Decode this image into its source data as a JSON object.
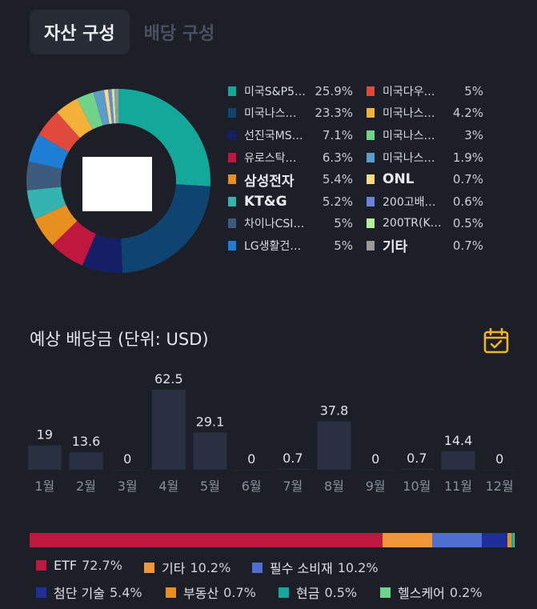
{
  "tabs": [
    {
      "label": "자산 구성",
      "active": true
    },
    {
      "label": "배당 구성",
      "active": false
    }
  ],
  "asset_composition": {
    "items": [
      {
        "name": "미국S&P5…",
        "value": 25.9,
        "label": "25.9%",
        "color": "#14a89a",
        "big": false
      },
      {
        "name": "미국나스…",
        "value": 23.3,
        "label": "23.3%",
        "color": "#0f4470",
        "big": false
      },
      {
        "name": "선진국MS…",
        "value": 7.1,
        "label": "7.1%",
        "color": "#151f66",
        "big": false
      },
      {
        "name": "유로스탁…",
        "value": 6.3,
        "label": "6.3%",
        "color": "#c0173f",
        "big": false
      },
      {
        "name": "삼성전자",
        "value": 5.4,
        "label": "5.4%",
        "color": "#e8901f",
        "big": true
      },
      {
        "name": "KT&G",
        "value": 5.2,
        "label": "5.2%",
        "color": "#34b3b0",
        "big": true
      },
      {
        "name": "차이나CSI…",
        "value": 5.0,
        "label": "5%",
        "color": "#3d5b7d",
        "big": false
      },
      {
        "name": "LG생활건…",
        "value": 5.0,
        "label": "5%",
        "color": "#1f7fd6",
        "big": false
      },
      {
        "name": "미국다우…",
        "value": 5.0,
        "label": "5%",
        "color": "#e04a3c",
        "big": false
      },
      {
        "name": "미국나스…",
        "value": 4.2,
        "label": "4.2%",
        "color": "#f3b13a",
        "big": false
      },
      {
        "name": "미국나스…",
        "value": 3.0,
        "label": "3%",
        "color": "#6fd38a",
        "big": false
      },
      {
        "name": "미국나스…",
        "value": 1.9,
        "label": "1.9%",
        "color": "#5d9cc8",
        "big": false
      },
      {
        "name": "ONL",
        "value": 0.7,
        "label": "0.7%",
        "color": "#f7d98a",
        "big": true
      },
      {
        "name": "200고배…",
        "value": 0.6,
        "label": "0.6%",
        "color": "#6f83d6",
        "big": false
      },
      {
        "name": "200TR(K…",
        "value": 0.5,
        "label": "0.5%",
        "color": "#b8ef9a",
        "big": false
      },
      {
        "name": "기타",
        "value": 0.7,
        "label": "0.7%",
        "color": "#9a9a9a",
        "big": true
      }
    ]
  },
  "dividend": {
    "title": "예상 배당금 (단위: USD)",
    "calendar_icon": "calendar-check-icon",
    "accent": "#f0b429"
  },
  "chart_data": {
    "type": "bar",
    "categories": [
      "1월",
      "2월",
      "3월",
      "4월",
      "5월",
      "6월",
      "7월",
      "8월",
      "9월",
      "10월",
      "11월",
      "12월"
    ],
    "values": [
      19,
      13.6,
      0,
      62.5,
      29.1,
      0,
      0.7,
      37.8,
      0,
      0.7,
      14.4,
      0
    ],
    "value_labels": [
      "19",
      "13.6",
      "0",
      "62.5",
      "29.1",
      "0",
      "0.7",
      "37.8",
      "0",
      "0.7",
      "14.4",
      "0"
    ]
  },
  "category_breakdown": [
    {
      "name": "ETF",
      "value": 72.7,
      "label": "72.7%",
      "color": "#c0173f"
    },
    {
      "name": "기타",
      "value": 10.2,
      "label": "10.2%",
      "color": "#f0963a"
    },
    {
      "name": "필수 소비재",
      "value": 10.2,
      "label": "10.2%",
      "color": "#4f6fd0"
    },
    {
      "name": "첨단 기술",
      "value": 5.4,
      "label": "5.4%",
      "color": "#1f2f9a"
    },
    {
      "name": "부동산",
      "value": 0.7,
      "label": "0.7%",
      "color": "#e8901f"
    },
    {
      "name": "현금",
      "value": 0.5,
      "label": "0.5%",
      "color": "#14a89a"
    },
    {
      "name": "헬스케어",
      "value": 0.2,
      "label": "0.2%",
      "color": "#6fd38a"
    }
  ]
}
